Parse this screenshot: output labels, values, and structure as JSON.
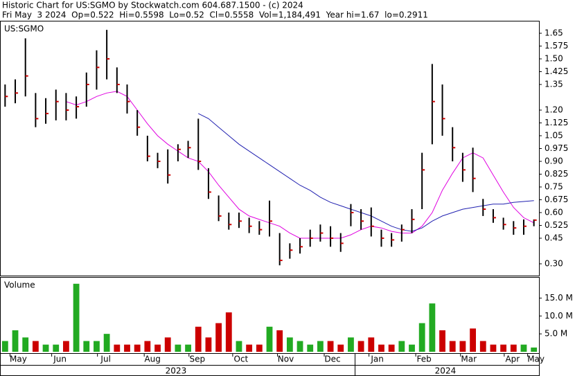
{
  "header": {
    "title": "Historic Chart for US:SGMO by Stockwatch.com 604.687.1500 - (c) 2024",
    "info": "Fri May  3 2024  Op=0.522  Hi=0.5598  Lo=0.52  Cl=0.5558  Vol=1,184,491  Year hi=1.67  lo=0.2911"
  },
  "chart_data": [
    {
      "type": "ohlc",
      "label": "US:SGMO",
      "categories": [
        null,
        null,
        null,
        null,
        null,
        null,
        null,
        null,
        null,
        null,
        null,
        null,
        null,
        null,
        null,
        null,
        null,
        null,
        null,
        null,
        null,
        null,
        null,
        null,
        null,
        null,
        null,
        null,
        null,
        null,
        null,
        null,
        null,
        null,
        null,
        null,
        null,
        null,
        null,
        null,
        null,
        null,
        null,
        null,
        null,
        null,
        null,
        null,
        null,
        null,
        null,
        null,
        null
      ],
      "high": [
        1.35,
        1.38,
        1.62,
        1.3,
        1.27,
        1.32,
        1.3,
        1.28,
        1.42,
        1.55,
        1.67,
        1.45,
        1.35,
        1.2,
        1.05,
        0.95,
        0.97,
        1.0,
        1.02,
        1.15,
        0.86,
        0.7,
        0.6,
        0.6,
        0.57,
        0.55,
        0.67,
        0.48,
        0.42,
        0.45,
        0.5,
        0.53,
        0.52,
        0.48,
        0.65,
        0.62,
        0.63,
        0.5,
        0.48,
        0.53,
        0.62,
        0.95,
        1.47,
        1.35,
        1.1,
        0.95,
        0.98,
        0.68,
        0.62,
        0.57,
        0.55,
        0.56,
        0.5598
      ],
      "low": [
        1.22,
        1.24,
        1.28,
        1.1,
        1.12,
        1.14,
        1.14,
        1.15,
        1.22,
        1.32,
        1.38,
        1.3,
        1.18,
        1.05,
        0.9,
        0.86,
        0.77,
        0.9,
        0.92,
        0.85,
        0.68,
        0.55,
        0.5,
        0.51,
        0.48,
        0.47,
        0.46,
        0.2911,
        0.33,
        0.36,
        0.4,
        0.43,
        0.4,
        0.37,
        0.52,
        0.5,
        0.46,
        0.4,
        0.4,
        0.43,
        0.48,
        0.62,
        1.0,
        1.05,
        0.9,
        0.78,
        0.72,
        0.58,
        0.54,
        0.5,
        0.47,
        0.47,
        0.52
      ],
      "close": [
        1.28,
        1.3,
        1.4,
        1.15,
        1.18,
        1.25,
        1.2,
        1.22,
        1.35,
        1.45,
        1.5,
        1.35,
        1.25,
        1.1,
        0.93,
        0.9,
        0.82,
        0.97,
        0.98,
        0.9,
        0.72,
        0.58,
        0.53,
        0.55,
        0.52,
        0.5,
        0.55,
        0.32,
        0.38,
        0.4,
        0.45,
        0.48,
        0.45,
        0.42,
        0.6,
        0.55,
        0.52,
        0.45,
        0.44,
        0.5,
        0.56,
        0.85,
        1.25,
        1.15,
        0.98,
        0.85,
        0.8,
        0.62,
        0.57,
        0.53,
        0.51,
        0.52,
        0.5558
      ],
      "bar_color": "#000000",
      "close_color": "#cc0000",
      "lines": [
        {
          "color": "#e000e0",
          "values": [
            null,
            null,
            null,
            null,
            null,
            null,
            1.25,
            1.23,
            1.25,
            1.28,
            1.3,
            1.31,
            1.28,
            1.2,
            1.12,
            1.05,
            1.0,
            0.96,
            0.92,
            0.9,
            0.84,
            0.76,
            0.69,
            0.62,
            0.58,
            0.56,
            0.54,
            0.52,
            0.48,
            0.45,
            0.45,
            0.45,
            0.45,
            0.45,
            0.47,
            0.5,
            0.52,
            0.51,
            0.49,
            0.48,
            0.48,
            0.52,
            0.6,
            0.73,
            0.83,
            0.92,
            0.95,
            0.92,
            0.82,
            0.72,
            0.63,
            0.57,
            0.54
          ]
        },
        {
          "color": "#2020b0",
          "values": [
            null,
            null,
            null,
            null,
            null,
            null,
            null,
            null,
            null,
            null,
            null,
            null,
            null,
            null,
            null,
            null,
            null,
            null,
            null,
            1.18,
            1.15,
            1.1,
            1.05,
            1.0,
            0.96,
            0.92,
            0.88,
            0.84,
            0.8,
            0.76,
            0.73,
            0.69,
            0.66,
            0.64,
            0.62,
            0.6,
            0.58,
            0.55,
            0.52,
            0.5,
            0.49,
            0.51,
            0.55,
            0.58,
            0.6,
            0.62,
            0.63,
            0.64,
            0.65,
            0.65,
            0.66,
            0.665,
            0.67
          ]
        }
      ],
      "ylim": [
        0.231,
        1.719
      ],
      "yticks": [
        1.65,
        1.575,
        {
          "value": 1.5,
          "label": "1.50"
        },
        1.425,
        1.35,
        {
          "value": 1.2,
          "label": "1.20"
        },
        1.125,
        1.05,
        0.975,
        {
          "value": 0.9,
          "label": "0.90"
        },
        0.825,
        0.75,
        0.675,
        {
          "value": 0.6,
          "label": "0.60"
        },
        0.525,
        0.45,
        {
          "value": 0.3,
          "label": "0.30"
        }
      ],
      "xticks": [
        {
          "value": 1.3,
          "label": "May"
        },
        {
          "value": 5.4,
          "label": "Jun"
        },
        {
          "value": 9.9,
          "label": "Jul"
        },
        {
          "value": 14.5,
          "label": "Aug"
        },
        {
          "value": 18.9,
          "label": "Sep"
        },
        {
          "value": 23.2,
          "label": "Oct"
        },
        {
          "value": 27.6,
          "label": "Nov"
        },
        {
          "value": 32.2,
          "label": "Dec"
        },
        {
          "value": 36.6,
          "label": "Jan"
        },
        {
          "value": 41.2,
          "label": "Feb"
        },
        {
          "value": 45.6,
          "label": "Mar"
        },
        {
          "value": 49.9,
          "label": "Apr"
        },
        {
          "value": 52.2,
          "label": "May"
        }
      ],
      "year_labels": [
        {
          "value": 16.8,
          "label": "2023"
        },
        {
          "value": 43.3,
          "label": "2024"
        }
      ]
    },
    {
      "type": "bar",
      "label": "Volume",
      "values": [
        3,
        6,
        4,
        3,
        2,
        2,
        3,
        19,
        3,
        3,
        5,
        2,
        2,
        2,
        3,
        2,
        4,
        2,
        2,
        7,
        4,
        8,
        11,
        3,
        2,
        2,
        7,
        6,
        4,
        3,
        2,
        3,
        3,
        2,
        4,
        3,
        4,
        2,
        2,
        3,
        2,
        8,
        13.5,
        6,
        3,
        3,
        6.5,
        3,
        2,
        2,
        2,
        2,
        1.184491
      ],
      "up_color": "#22aa22",
      "down_color": "#cc0000",
      "ylim": [
        0,
        20.7
      ],
      "yticks": [
        {
          "value": 15,
          "label": "15.0 M"
        },
        {
          "value": 10,
          "label": "10.0 M"
        },
        {
          "value": 5,
          "label": "5.0 M"
        }
      ]
    }
  ]
}
